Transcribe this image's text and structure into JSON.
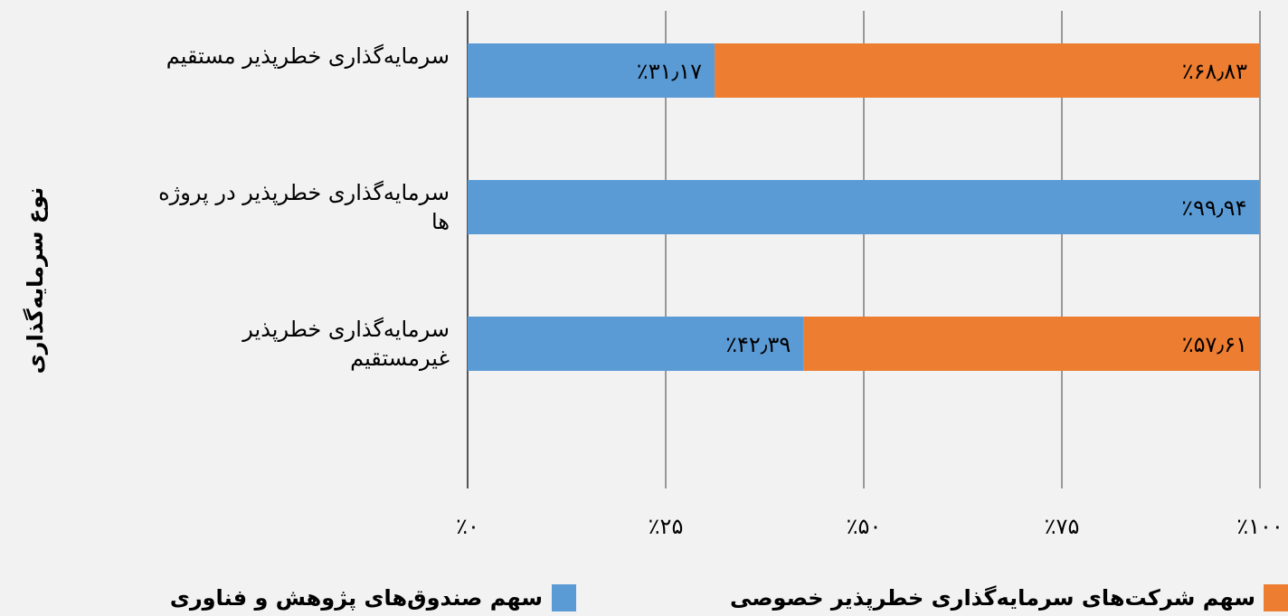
{
  "chart_data": {
    "type": "stacked-barh",
    "y_axis_label": "نوع سرمایه‌گذاری",
    "categories": [
      "سرمایه‌گذاری خطرپذیر مستقیم",
      "سرمایه‌گذاری خطرپذیر در پروژه ها",
      "سرمایه‌گذاری خطرپذیر غیرمستقیم"
    ],
    "series": [
      {
        "name": "سهم صندوق‌های پژوهش و فناوری",
        "color": "#5b9bd5",
        "values": [
          31.17,
          99.94,
          42.39
        ],
        "value_labels": [
          "٪۳۱٫۱۷",
          "٪۹۹٫۹۴",
          "٪۴۲٫۳۹"
        ]
      },
      {
        "name": "سهم شرکت‌های سرمایه‌گذاری خطرپذیر خصوصی",
        "color": "#ed7d31",
        "values": [
          68.83,
          0.06,
          57.61
        ],
        "value_labels": [
          "٪۶۸٫۸۳",
          null,
          "٪۵۷٫۶۱"
        ]
      }
    ],
    "xlim": [
      0,
      100
    ],
    "xticks": [
      {
        "value": 0,
        "label": "٪۰"
      },
      {
        "value": 25,
        "label": "٪۲۵"
      },
      {
        "value": 50,
        "label": "٪۵۰"
      },
      {
        "value": 75,
        "label": "٪۷۵"
      },
      {
        "value": 100,
        "label": "٪۱۰۰"
      }
    ],
    "grid": true
  }
}
